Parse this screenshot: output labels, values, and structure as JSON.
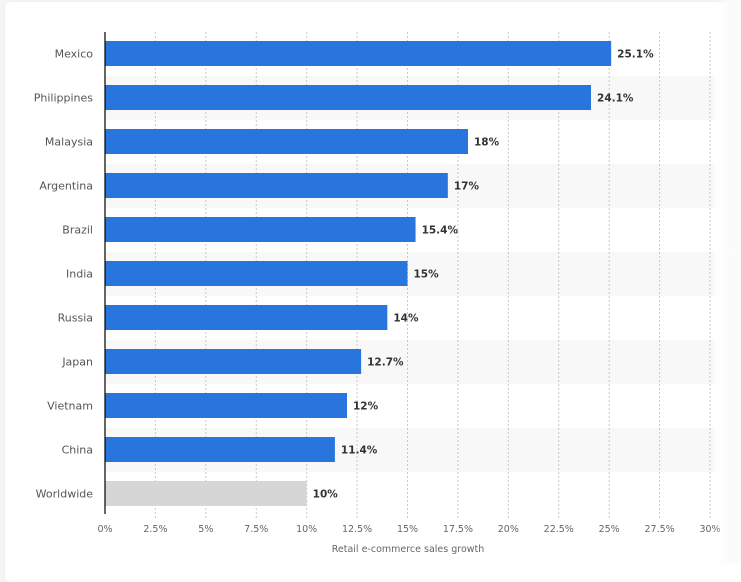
{
  "chart_data": {
    "type": "bar",
    "orientation": "horizontal",
    "categories": [
      "Mexico",
      "Philippines",
      "Malaysia",
      "Argentina",
      "Brazil",
      "India",
      "Russia",
      "Japan",
      "Vietnam",
      "China",
      "Worldwide"
    ],
    "values": [
      25.1,
      24.1,
      18,
      17,
      15.4,
      15,
      14,
      12.7,
      12,
      11.4,
      10
    ],
    "value_labels": [
      "25.1%",
      "24.1%",
      "18%",
      "17%",
      "15.4%",
      "15%",
      "14%",
      "12.7%",
      "12%",
      "11.4%",
      "10%"
    ],
    "highlight_colors": [
      "#2876dd",
      "#2876dd",
      "#2876dd",
      "#2876dd",
      "#2876dd",
      "#2876dd",
      "#2876dd",
      "#2876dd",
      "#2876dd",
      "#2876dd",
      "#d6d6d6"
    ],
    "xlim": [
      0,
      30
    ],
    "xticks": [
      0,
      2.5,
      5,
      7.5,
      10,
      12.5,
      15,
      17.5,
      20,
      22.5,
      25,
      27.5,
      30
    ],
    "xtick_labels": [
      "0%",
      "2.5%",
      "5%",
      "7.5%",
      "10%",
      "12.5%",
      "15%",
      "17.5%",
      "20%",
      "22.5%",
      "25%",
      "27.5%",
      "30%"
    ],
    "xlabel": "Retail e-commerce sales growth",
    "ylabel": "",
    "title": "",
    "grid": true
  }
}
